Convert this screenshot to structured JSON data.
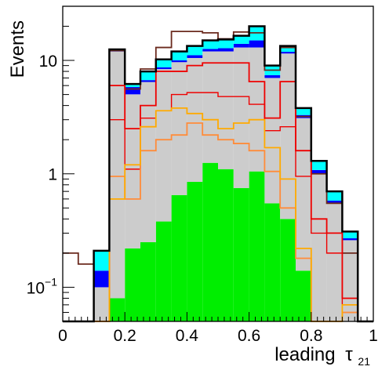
{
  "chart_data": {
    "type": "histogram",
    "title": "",
    "xlabel": "leading",
    "xlabel_symbol": "τ",
    "xlabel_subscript": "21",
    "ylabel": "Events",
    "x_scale": "linear",
    "y_scale": "log",
    "xlim": [
      0,
      1
    ],
    "ylim": [
      0.05,
      30
    ],
    "bins": [
      0,
      0.05,
      0.1,
      0.15,
      0.2,
      0.25,
      0.3,
      0.35,
      0.4,
      0.45,
      0.5,
      0.55,
      0.6,
      0.65,
      0.7,
      0.75,
      0.8,
      0.85,
      0.9,
      0.95,
      1.0
    ],
    "x_ticks": [
      {
        "value": 0,
        "label": "0"
      },
      {
        "value": 0.2,
        "label": "0.2"
      },
      {
        "value": 0.4,
        "label": "0.4"
      },
      {
        "value": 0.6,
        "label": "0.6"
      },
      {
        "value": 0.8,
        "label": "0.8"
      },
      {
        "value": 1,
        "label": "1"
      }
    ],
    "y_ticks": [
      {
        "value": 0.1,
        "label": "10",
        "sup": "−1"
      },
      {
        "value": 1,
        "label": "1",
        "sup": ""
      },
      {
        "value": 10,
        "label": "10",
        "sup": ""
      }
    ],
    "stack": [
      {
        "name": "green",
        "color": "#00ee00",
        "values": [
          0,
          0,
          0,
          0.08,
          0.22,
          0.25,
          0.38,
          0.65,
          0.85,
          1.25,
          1.1,
          0.75,
          1.05,
          0.55,
          0.4,
          0.14,
          0,
          0,
          0,
          0
        ]
      },
      {
        "name": "gray",
        "color": "#cccccc",
        "values": [
          0,
          0,
          0.1,
          11.9,
          4.8,
          6.2,
          8.0,
          9.0,
          9.65,
          10.75,
          10.9,
          12.25,
          11.95,
          6.45,
          11.1,
          2.96,
          1.0,
          0.55,
          0.26,
          0
        ]
      },
      {
        "name": "blue",
        "color": "#0000ff",
        "values": [
          0,
          0,
          0.04,
          0.3,
          0.8,
          0.25,
          0.3,
          0.35,
          0.6,
          0.6,
          0.8,
          1.0,
          2.0,
          0.4,
          0.4,
          0.2,
          0.08,
          0.03,
          0.01,
          0
        ]
      },
      {
        "name": "cyan",
        "color": "#00ffff",
        "values": [
          0,
          0,
          0.07,
          0.2,
          0.4,
          1.3,
          1.5,
          2.0,
          2.3,
          2.4,
          2.5,
          2.5,
          5.0,
          1.6,
          1.5,
          0.5,
          0.22,
          0.12,
          0.04,
          0
        ]
      }
    ],
    "outlines": [
      {
        "name": "black",
        "color": "#000000",
        "width": 2.5,
        "values": [
          0,
          0,
          0.21,
          12.5,
          6.2,
          8.0,
          10.2,
          12.0,
          13.4,
          15.0,
          15.3,
          16.5,
          20.0,
          9.0,
          13.4,
          3.8,
          1.3,
          0.7,
          0.31,
          0
        ]
      },
      {
        "name": "brown",
        "color": "#6b2a1e",
        "width": 1.8,
        "values": [
          0.2,
          0.16,
          0,
          12.2,
          5.6,
          8.4,
          13.0,
          18.0,
          18.0,
          17.5,
          15.5,
          17.8,
          17.5,
          8.2,
          13.0,
          3.2,
          1.0,
          0.55,
          0.2,
          0
        ]
      },
      {
        "name": "red",
        "color": "#ee0000",
        "width": 1.8,
        "values": [
          0,
          0,
          0,
          6.0,
          2.5,
          4.0,
          8.0,
          8.0,
          9.0,
          9.5,
          9.5,
          9.5,
          6.5,
          3.1,
          6.5,
          1.6,
          0.4,
          0.3,
          0.08,
          0
        ]
      },
      {
        "name": "red2",
        "color": "#ee0000",
        "width": 1.4,
        "values": [
          0,
          0,
          0,
          3.0,
          1.1,
          3.1,
          3.6,
          5.0,
          5.2,
          5.2,
          4.8,
          4.8,
          4.1,
          2.4,
          2.6,
          0.95,
          0.3,
          0.2,
          0.07,
          0
        ]
      },
      {
        "name": "orange",
        "color": "#ffaa00",
        "width": 1.8,
        "values": [
          0,
          0,
          0,
          0.6,
          1.2,
          2.6,
          3.6,
          3.8,
          3.4,
          3.0,
          2.5,
          2.8,
          3.0,
          1.7,
          0.9,
          0.22,
          0,
          0,
          0.07,
          0
        ]
      },
      {
        "name": "orange2",
        "color": "#ff8c3a",
        "width": 1.8,
        "values": [
          0,
          0,
          0,
          0.95,
          0.6,
          1.6,
          2.0,
          2.2,
          2.8,
          2.2,
          2.0,
          1.85,
          1.6,
          1.05,
          0.5,
          0.18,
          0,
          0,
          0.06,
          0
        ]
      }
    ]
  }
}
